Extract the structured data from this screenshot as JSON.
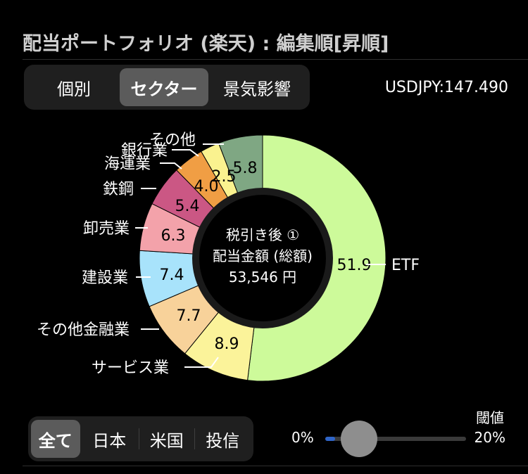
{
  "header": {
    "title": "配当ポートフォリオ (楽天) : 編集順[昇順]"
  },
  "view_tabs": {
    "items": [
      "個別",
      "セクター",
      "景気影響"
    ],
    "selected": 1
  },
  "fx_rate": "USDJPY:147.490",
  "center": {
    "line1": "税引き後 ①",
    "line2": "配当金額 (総額)",
    "line3": "53,546 円"
  },
  "chart_data": {
    "type": "pie",
    "donut": true,
    "categories": [
      "ETF",
      "サービス業",
      "その他金融業",
      "建設業",
      "卸売業",
      "鉄鋼",
      "海運業",
      "銀行業",
      "その他"
    ],
    "value_labels": [
      "51.9",
      "8.9",
      "7.7",
      "7.4",
      "6.3",
      "5.4",
      "4.0",
      "2.5",
      "5.8"
    ],
    "values": [
      51.9,
      8.9,
      7.7,
      7.4,
      6.3,
      5.4,
      4.0,
      2.5,
      5.8
    ],
    "colors": [
      "#cdfa9a",
      "#fbf39a",
      "#f8d29a",
      "#a8e3fb",
      "#f3a2aa",
      "#cb5784",
      "#f09e44",
      "#faf28f",
      "#7fa783"
    ]
  },
  "region_filter": {
    "items": [
      "全て",
      "日本",
      "米国",
      "投信"
    ],
    "selected": 0
  },
  "threshold": {
    "label": "閾値",
    "min_label": "0%",
    "max_label": "20%",
    "value": 0.04
  }
}
